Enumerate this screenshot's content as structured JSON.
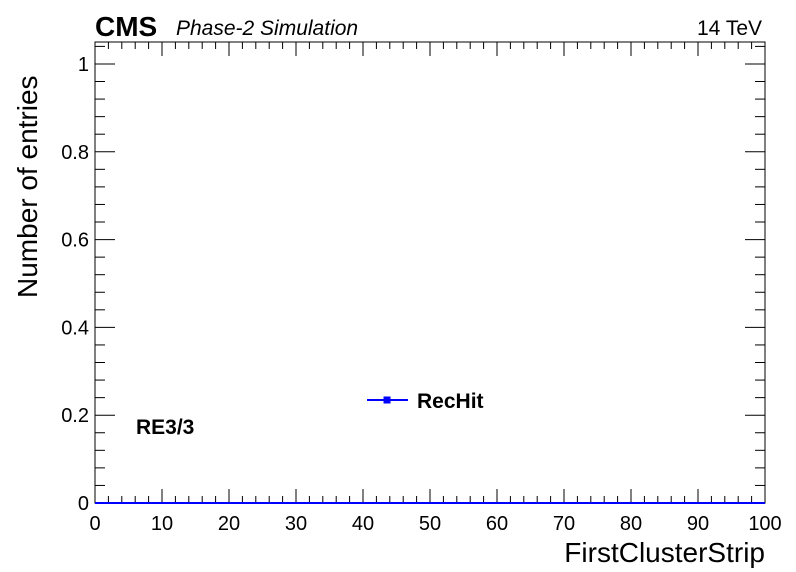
{
  "header": {
    "experiment": "CMS",
    "subtitle": "Phase-2 Simulation",
    "energy": "14 TeV"
  },
  "region_label": "RE3/3",
  "colors": {
    "series": "#0000ff",
    "frame": "#000000"
  },
  "chart_data": {
    "type": "line",
    "title": "",
    "xlabel": "FirstClusterStrip",
    "ylabel": "Number of entries",
    "xlim": [
      0,
      100
    ],
    "ylim": [
      0,
      1.05
    ],
    "x_ticks": [
      0,
      10,
      20,
      30,
      40,
      50,
      60,
      70,
      80,
      90,
      100
    ],
    "x_tick_labels": [
      "0",
      "10",
      "20",
      "30",
      "40",
      "50",
      "60",
      "70",
      "80",
      "90",
      "100"
    ],
    "y_ticks": [
      0,
      0.2,
      0.4,
      0.6,
      0.8,
      1
    ],
    "y_tick_labels": [
      "0",
      "0.2",
      "0.4",
      "0.6",
      "0.8",
      "1"
    ],
    "grid": false,
    "legend_position": "center",
    "series": [
      {
        "name": "RecHit",
        "color": "#0000ff",
        "x": [
          0,
          100
        ],
        "y": [
          0,
          0
        ]
      }
    ]
  }
}
